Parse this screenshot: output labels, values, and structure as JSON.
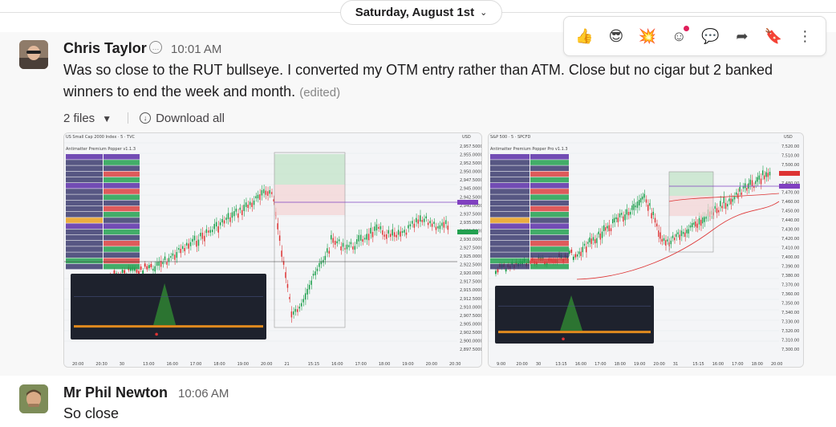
{
  "date_divider": {
    "label": "Saturday, August 1st"
  },
  "toolbar": {
    "icons": [
      "thumbs-up-icon",
      "sunglasses-icon",
      "collision-icon",
      "add-reaction-icon",
      "reply-in-thread-icon",
      "share-icon",
      "bookmark-icon",
      "more-actions-icon"
    ],
    "glyphs": [
      "👍",
      "😎",
      "💥",
      "☺",
      "💬",
      "➦",
      "🔖",
      "⋮"
    ]
  },
  "message1": {
    "author": "Chris Taylor",
    "time": "10:01 AM",
    "text_line1": "Was so close to the RUT bullseye. I converted my OTM entry rather than ATM. Close but no cigar but 2 banked",
    "text_line2": "winners to end the week and month.",
    "edited": "(edited)",
    "files_label": "2 files",
    "download_label": "Download all"
  },
  "chart1": {
    "header": "US Small Cap 2000 Index · 5 · TVC",
    "panel_title": "Antimatter Premium Popper v1.1.3",
    "usd": "USD",
    "ticks": [
      "2,957.5000",
      "2,955.0000",
      "2,952.5000",
      "2,950.0000",
      "2,947.5000",
      "2,945.0000",
      "2,942.5000",
      "2,940.0000",
      "2,937.5000",
      "2,935.0000",
      "2,932.5000",
      "2,930.0000",
      "2,927.5000",
      "2,925.0000",
      "2,922.5000",
      "2,920.0000",
      "2,917.5000",
      "2,915.0000",
      "2,912.5000",
      "2,910.0000",
      "2,907.5000",
      "2,905.0000",
      "2,902.5000",
      "2,900.0000",
      "2,897.5000"
    ],
    "xticks": [
      "20:00",
      "20:30",
      "30",
      "13:00",
      "16:00",
      "17:00",
      "18:00",
      "19:00",
      "20:00",
      "21",
      "15:15",
      "16:00",
      "17:00",
      "18:00",
      "19:00",
      "20:00",
      "20:30"
    ]
  },
  "chart2": {
    "header": "S&P 500 · 5 · SPCFD",
    "panel_title": "Antimatter Premium Popper Pro v1.1.3",
    "usd": "USD",
    "ticks": [
      "7,520.00",
      "7,510.00",
      "7,500.00",
      "7,490.00",
      "7,480.00",
      "7,470.00",
      "7,460.00",
      "7,450.00",
      "7,440.00",
      "7,430.00",
      "7,420.00",
      "7,410.00",
      "7,400.00",
      "7,390.00",
      "7,380.00",
      "7,370.00",
      "7,360.00",
      "7,350.00",
      "7,340.00",
      "7,330.00",
      "7,320.00",
      "7,310.00",
      "7,300.00"
    ],
    "xticks": [
      "9:00",
      "20:00",
      "30",
      "13:15",
      "16:00",
      "17:00",
      "18:00",
      "19:00",
      "20:00",
      "31",
      "15:15",
      "16:00",
      "17:00",
      "18:00",
      "20:00"
    ]
  },
  "message2": {
    "author": "Mr Phil Newton",
    "time": "10:06 AM",
    "text": "So close"
  }
}
